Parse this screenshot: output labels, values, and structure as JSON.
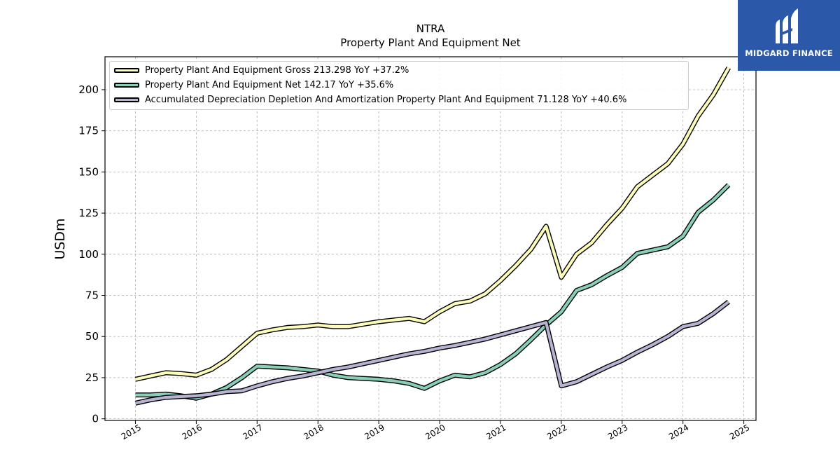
{
  "title": "NTRA",
  "subtitle": "Property Plant And Equipment Net",
  "logo": {
    "text": "MIDGARD FINANCE"
  },
  "colors": {
    "gross": "#fdfdb9",
    "net": "#88cfb9",
    "accumulated": "#b7b3d3",
    "logo_bg": "#2b58a8"
  },
  "legend": [
    {
      "label": "Property Plant And Equipment Gross  213.298 YoY +37.2%"
    },
    {
      "label": "Property Plant And Equipment Net  142.17 YoY +35.6%"
    },
    {
      "label": "Accumulated Depreciation Depletion And Amortization Property Plant And Equipment  71.128 YoY +40.6%"
    }
  ],
  "chart_data": {
    "type": "line",
    "title": "NTRA",
    "subtitle": "Property Plant And Equipment Net",
    "ylabel": "USDm",
    "xlabel": "",
    "xlim": [
      2014.5,
      2025.2
    ],
    "ylim": [
      -1,
      220
    ],
    "xticks": [
      2015,
      2016,
      2017,
      2018,
      2019,
      2020,
      2021,
      2022,
      2023,
      2024,
      2025
    ],
    "yticks": [
      0,
      25,
      50,
      75,
      100,
      125,
      150,
      175,
      200
    ],
    "grid": true,
    "legend_position": "top-left",
    "x": [
      2015.0,
      2015.25,
      2015.5,
      2015.75,
      2016.0,
      2016.25,
      2016.5,
      2016.75,
      2017.0,
      2017.25,
      2017.5,
      2017.75,
      2018.0,
      2018.25,
      2018.5,
      2018.75,
      2019.0,
      2019.25,
      2019.5,
      2019.75,
      2020.0,
      2020.25,
      2020.5,
      2020.75,
      2021.0,
      2021.25,
      2021.5,
      2021.75,
      2022.0,
      2022.25,
      2022.5,
      2022.75,
      2023.0,
      2023.25,
      2023.5,
      2023.75,
      2024.0,
      2024.25,
      2024.5,
      2024.75
    ],
    "series": [
      {
        "name": "Property Plant And Equipment Gross",
        "values": [
          24,
          26,
          28,
          27.5,
          26.5,
          30,
          36,
          44,
          52,
          54,
          55.5,
          56,
          57,
          56,
          56,
          57.5,
          59,
          60,
          61,
          59,
          65,
          70,
          71.5,
          76,
          84,
          93,
          103,
          117,
          86,
          100,
          107,
          118,
          128,
          141,
          148,
          155,
          167,
          184,
          197,
          213.3
        ]
      },
      {
        "name": "Property Plant And Equipment Net",
        "values": [
          14.5,
          14.5,
          15,
          14,
          12.5,
          15,
          19,
          25,
          32,
          31.5,
          31,
          30,
          29,
          26.5,
          25,
          24.5,
          24,
          23,
          21.5,
          18.5,
          23,
          26.5,
          25.5,
          28,
          33,
          39.5,
          48,
          57,
          65,
          78,
          81.5,
          87,
          92,
          100.5,
          102.5,
          104.5,
          111,
          125.5,
          133,
          142.17
        ]
      },
      {
        "name": "Accumulated Depreciation Depletion And Amortization Property Plant And Equipment",
        "values": [
          9.5,
          11.5,
          13,
          13.5,
          14,
          15,
          16.5,
          17,
          20,
          22.5,
          24.5,
          26,
          28,
          30,
          31.5,
          33.5,
          35.5,
          37.5,
          39.5,
          41,
          43,
          44.5,
          46.5,
          48.5,
          51,
          53.5,
          56,
          58.5,
          20,
          22.5,
          27,
          31.5,
          35.5,
          40.5,
          45,
          50,
          56,
          58,
          64,
          71.128
        ]
      }
    ]
  }
}
